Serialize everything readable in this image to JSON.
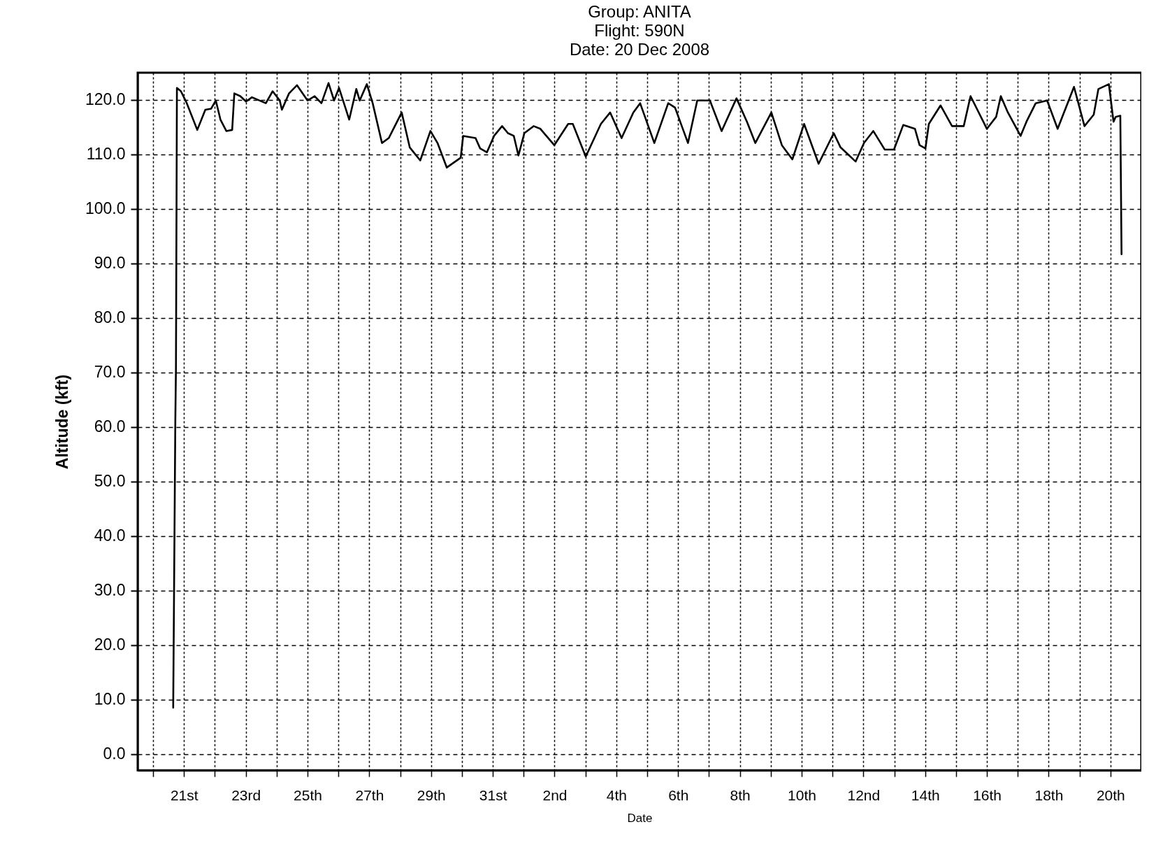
{
  "chart_data": {
    "type": "line",
    "title": "Group: ANITA\nFlight: 590N\nDate: 20 Dec 2008",
    "xlabel": "Date",
    "ylabel": "Altitude (kft)",
    "xlim": [
      "2008-12-19T12:00",
      "2009-01-21T00:00"
    ],
    "ylim": [
      -3,
      125
    ],
    "yticks": [
      {
        "value": 0,
        "label": "0.0"
      },
      {
        "value": 10,
        "label": "10.0"
      },
      {
        "value": 20,
        "label": "20.0"
      },
      {
        "value": 30,
        "label": "30.0"
      },
      {
        "value": 40,
        "label": "40.0"
      },
      {
        "value": 50,
        "label": "50.0"
      },
      {
        "value": 60,
        "label": "60.0"
      },
      {
        "value": 70,
        "label": "70.0"
      },
      {
        "value": 80,
        "label": "80.0"
      },
      {
        "value": 90,
        "label": "90.0"
      },
      {
        "value": 100,
        "label": "100.0"
      },
      {
        "value": 110,
        "label": "110.0"
      },
      {
        "value": 120,
        "label": "120.0"
      }
    ],
    "xticks": [
      {
        "value": "2008-12-20",
        "label": null
      },
      {
        "value": "2008-12-21",
        "label": "21st"
      },
      {
        "value": "2008-12-22",
        "label": null
      },
      {
        "value": "2008-12-23",
        "label": "23rd"
      },
      {
        "value": "2008-12-24",
        "label": null
      },
      {
        "value": "2008-12-25",
        "label": "25th"
      },
      {
        "value": "2008-12-26",
        "label": null
      },
      {
        "value": "2008-12-27",
        "label": "27th"
      },
      {
        "value": "2008-12-28",
        "label": null
      },
      {
        "value": "2008-12-29",
        "label": "29th"
      },
      {
        "value": "2008-12-30",
        "label": null
      },
      {
        "value": "2008-12-31",
        "label": "31st"
      },
      {
        "value": "2009-01-01",
        "label": null
      },
      {
        "value": "2009-01-02",
        "label": "2nd"
      },
      {
        "value": "2009-01-03",
        "label": null
      },
      {
        "value": "2009-01-04",
        "label": "4th"
      },
      {
        "value": "2009-01-05",
        "label": null
      },
      {
        "value": "2009-01-06",
        "label": "6th"
      },
      {
        "value": "2009-01-07",
        "label": null
      },
      {
        "value": "2009-01-08",
        "label": "8th"
      },
      {
        "value": "2009-01-09",
        "label": null
      },
      {
        "value": "2009-01-10",
        "label": "10th"
      },
      {
        "value": "2009-01-11",
        "label": null
      },
      {
        "value": "2009-01-12",
        "label": "12nd"
      },
      {
        "value": "2009-01-13",
        "label": null
      },
      {
        "value": "2009-01-14",
        "label": "14th"
      },
      {
        "value": "2009-01-15",
        "label": null
      },
      {
        "value": "2009-01-16",
        "label": "16th"
      },
      {
        "value": "2009-01-17",
        "label": null
      },
      {
        "value": "2009-01-18",
        "label": "18th"
      },
      {
        "value": "2009-01-19",
        "label": null
      },
      {
        "value": "2009-01-20",
        "label": "20th"
      }
    ],
    "grid": true,
    "marker": "none",
    "line_style": "solid",
    "x": [
      "2008-12-20T15:36",
      "2008-12-20T17:15",
      "2008-12-20T17:45",
      "2008-12-20T18:30",
      "2008-12-20T21:36",
      "2008-12-21T02:10",
      "2008-12-21T10:19",
      "2008-12-21T16:34",
      "2008-12-21T21:07",
      "2008-12-22T00:43",
      "2008-12-22T04:19",
      "2008-12-22T08:53",
      "2008-12-22T13:26",
      "2008-12-22T15:07",
      "2008-12-22T19:41",
      "2008-12-23T00:14",
      "2008-12-23T04:48",
      "2008-12-23T15:36",
      "2008-12-23T20:53",
      "2008-12-24T02:24",
      "2008-12-24T04:05",
      "2008-12-24T09:36",
      "2008-12-24T15:50",
      "2008-12-25T00:00",
      "2008-12-25T05:31",
      "2008-12-25T10:48",
      "2008-12-25T16:19",
      "2008-12-25T20:38",
      "2008-12-26T00:29",
      "2008-12-26T08:24",
      "2008-12-26T13:55",
      "2008-12-26T16:34",
      "2008-12-26T22:05",
      "2008-12-27T02:38",
      "2008-12-27T09:50",
      "2008-12-27T15:07",
      "2008-12-28T01:12",
      "2008-12-28T07:26",
      "2008-12-28T15:36",
      "2008-12-28T23:31",
      "2008-12-29T05:02",
      "2008-12-29T12:14",
      "2008-12-29T23:02",
      "2008-12-30T00:58",
      "2008-12-30T10:34",
      "2008-12-30T14:10",
      "2008-12-30T19:26",
      "2008-12-31T00:58",
      "2008-12-31T07:12",
      "2008-12-31T11:46",
      "2008-12-31T16:19",
      "2008-12-31T19:55",
      "2009-01-01T00:29",
      "2009-01-01T07:41",
      "2009-01-01T12:58",
      "2009-01-01T23:46",
      "2009-01-02T10:34",
      "2009-01-02T14:10",
      "2009-01-03T00:14",
      "2009-01-03T12:00",
      "2009-01-03T19:12",
      "2009-01-04T04:05",
      "2009-01-04T13:12",
      "2009-01-04T18:29",
      "2009-01-05T05:31",
      "2009-01-05T16:19",
      "2009-01-05T21:36",
      "2009-01-06T07:41",
      "2009-01-06T14:53",
      "2009-01-07T00:43",
      "2009-01-07T09:50",
      "2009-01-07T21:22",
      "2009-01-08T05:31",
      "2009-01-08T12:00",
      "2009-01-09T00:29",
      "2009-01-09T08:38",
      "2009-01-09T16:48",
      "2009-01-10T01:55",
      "2009-01-10T13:12",
      "2009-01-11T00:58",
      "2009-01-11T06:14",
      "2009-01-11T18:00",
      "2009-01-12T00:29",
      "2009-01-12T07:41",
      "2009-01-12T16:34",
      "2009-01-12T23:46",
      "2009-01-13T06:58",
      "2009-01-13T16:05",
      "2009-01-13T19:41",
      "2009-01-14T00:14",
      "2009-01-14T02:53",
      "2009-01-14T12:00",
      "2009-01-14T20:53",
      "2009-01-15T06:00",
      "2009-01-15T11:17",
      "2009-01-16T00:00",
      "2009-01-16T07:12",
      "2009-01-16T10:48",
      "2009-01-16T16:19",
      "2009-01-17T02:10",
      "2009-01-17T06:43",
      "2009-01-17T13:55",
      "2009-01-17T22:48",
      "2009-01-18T06:58",
      "2009-01-18T19:41",
      "2009-01-19T03:50",
      "2009-01-19T11:02",
      "2009-01-19T14:38",
      "2009-01-19T22:48",
      "2009-01-20T02:24",
      "2009-01-20T04:05",
      "2009-01-20T07:41",
      "2009-01-20T08:38"
    ],
    "series": [
      {
        "color": "#000000",
        "values": [
          8.5,
          61,
          71,
          122.2,
          121.6,
          119.4,
          114.5,
          118.2,
          118.4,
          119.9,
          116.4,
          114.3,
          114.5,
          121.2,
          120.7,
          119.7,
          120.5,
          119.4,
          121.6,
          119.9,
          118.2,
          121.2,
          122.7,
          119.9,
          120.7,
          119.4,
          123.1,
          119.9,
          122.2,
          116.4,
          122.0,
          119.9,
          122.9,
          119.4,
          112.1,
          113.0,
          117.7,
          111.3,
          108.9,
          114.3,
          112.1,
          107.6,
          109.4,
          113.4,
          113.0,
          111.1,
          110.4,
          113.4,
          115.2,
          113.9,
          113.4,
          109.8,
          113.9,
          115.2,
          114.7,
          111.7,
          115.6,
          115.6,
          109.6,
          115.6,
          117.7,
          113.0,
          117.7,
          119.4,
          112.1,
          119.4,
          118.6,
          112.1,
          119.9,
          119.9,
          114.3,
          120.3,
          116.0,
          112.1,
          117.7,
          111.7,
          109.1,
          115.6,
          108.3,
          113.9,
          111.3,
          108.7,
          112.1,
          114.3,
          110.9,
          110.9,
          115.4,
          114.7,
          111.7,
          111.1,
          115.6,
          119.0,
          115.2,
          115.2,
          120.7,
          114.7,
          116.9,
          120.7,
          117.7,
          113.4,
          116.0,
          119.4,
          119.9,
          114.7,
          122.4,
          115.2,
          117.3,
          122.0,
          122.9,
          116.0,
          116.9,
          117.1,
          91.7
        ]
      }
    ]
  }
}
